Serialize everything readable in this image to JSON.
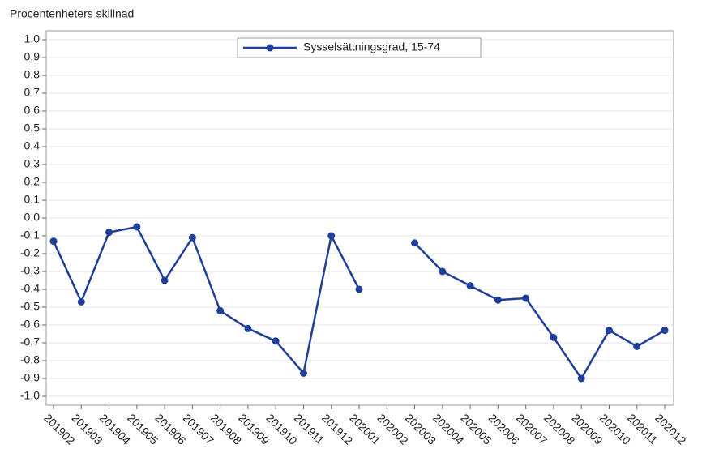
{
  "chart_data": {
    "type": "line",
    "title": "Procentenheters skillnad",
    "categories": [
      "201902",
      "201903",
      "201904",
      "201905",
      "201906",
      "201907",
      "201908",
      "201909",
      "201910",
      "201911",
      "201912",
      "202001",
      "202002",
      "202003",
      "202004",
      "202005",
      "202006",
      "202007",
      "202008",
      "202009",
      "202010",
      "202011",
      "202012"
    ],
    "series": [
      {
        "name": "Sysselsättningsgrad, 15-74",
        "color": "#1f3f99",
        "values": [
          -0.13,
          -0.47,
          -0.08,
          -0.05,
          -0.35,
          -0.11,
          -0.52,
          -0.62,
          -0.69,
          -0.87,
          -0.1,
          -0.4,
          null,
          -0.14,
          -0.3,
          -0.38,
          -0.46,
          -0.45,
          -0.67,
          -0.9,
          -0.63,
          -0.72,
          -0.63
        ]
      }
    ],
    "ylim": [
      -1.05,
      1.05
    ],
    "yticks": [
      {
        "value": 1.0,
        "label": "1.0"
      },
      0.9,
      0.8,
      0.7,
      0.6,
      0.5,
      0.4,
      0.3,
      0.2,
      0.1,
      {
        "value": 0.0,
        "label": "0.0"
      },
      -0.1,
      -0.2,
      -0.3,
      -0.4,
      -0.5,
      -0.6,
      -0.7,
      -0.8,
      -0.9,
      {
        "value": -1.0,
        "label": "-1.0"
      }
    ],
    "grid": true,
    "legend": "top"
  }
}
